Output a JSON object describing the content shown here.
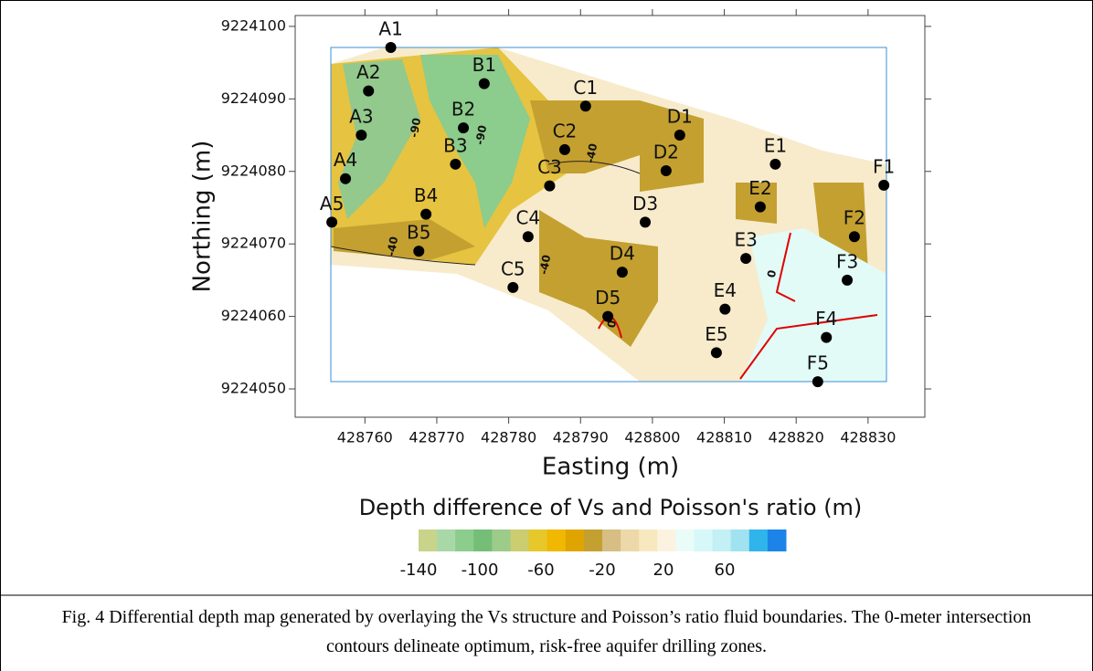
{
  "chart_data": {
    "type": "scatter",
    "xlabel": "Easting (m)",
    "ylabel": "Northing (m)",
    "labels": [
      "A1",
      "A2",
      "A3",
      "A4",
      "A5",
      "B1",
      "B2",
      "B3",
      "B4",
      "B5",
      "C1",
      "C2",
      "C3",
      "C4",
      "C5",
      "D1",
      "D2",
      "D3",
      "D4",
      "D5",
      "E1",
      "E2",
      "E3",
      "E4",
      "E5",
      "F1",
      "F2",
      "F3",
      "F4",
      "F5"
    ],
    "x": [
      428763.6,
      428760.5,
      428759.5,
      428757.3,
      428755.4,
      428776.6,
      428773.7,
      428772.6,
      428768.5,
      428767.5,
      428790.7,
      428787.8,
      428785.7,
      428782.7,
      428780.6,
      428803.8,
      428801.9,
      428799.0,
      428795.8,
      428793.8,
      428817.1,
      428815.0,
      428813.0,
      428810.1,
      428808.9,
      428832.2,
      428828.1,
      428827.1,
      428824.2,
      428823.0
    ],
    "values": [
      9224097.1,
      9224091.1,
      9224085.0,
      9224079.0,
      9224073.0,
      9224092.1,
      9224086.0,
      9224081.0,
      9224074.1,
      9224069.0,
      9224089.0,
      9224083.0,
      9224078.0,
      9224071.0,
      9224064.0,
      9224085.0,
      9224080.1,
      9224073.0,
      9224066.1,
      9224060.0,
      9224081.0,
      9224075.1,
      9224068.0,
      9224061.0,
      9224055.0,
      9224078.1,
      9224071.0,
      9224065.0,
      9224057.1,
      9224051.0
    ],
    "color": "#000000",
    "xlim": [
      428750.3,
      428837.9
    ],
    "ylim": [
      9224046.1,
      9224101.5
    ],
    "xticks": [
      428760,
      428770,
      428780,
      428790,
      428800,
      428810,
      428820,
      428830
    ],
    "yticks": [
      9224050,
      9224060,
      9224070,
      9224080,
      9224090,
      9224100
    ],
    "grid": false,
    "contour_labels": [
      "-90",
      "-90",
      "-40",
      "-40",
      "-40",
      "0",
      "0"
    ],
    "colorbar": {
      "title": "Depth difference of Vs and Poisson's ratio (m)",
      "colors": [
        "#c9d48a",
        "#a8d8a8",
        "#8ccc8c",
        "#74be78",
        "#9ccb8a",
        "#cccc70",
        "#e6c82a",
        "#f0b800",
        "#e0a400",
        "#c4a030",
        "#d6be84",
        "#ecd8a8",
        "#f8e8c0",
        "#fbf3e0",
        "#eafcf8",
        "#d6f8f8",
        "#c2f0f4",
        "#a0e2f0",
        "#30b4ec",
        "#1c84e8"
      ],
      "lim": [
        -140,
        100
      ],
      "ticks": [
        -140,
        -100,
        -60,
        -20,
        20,
        60
      ]
    },
    "caption": "Fig. 4 Differential depth map generated by overlaying the Vs structure and Poisson’s ratio fluid boundaries. The 0-meter intersection contours delineate optimum, risk-free aquifer drilling zones."
  }
}
